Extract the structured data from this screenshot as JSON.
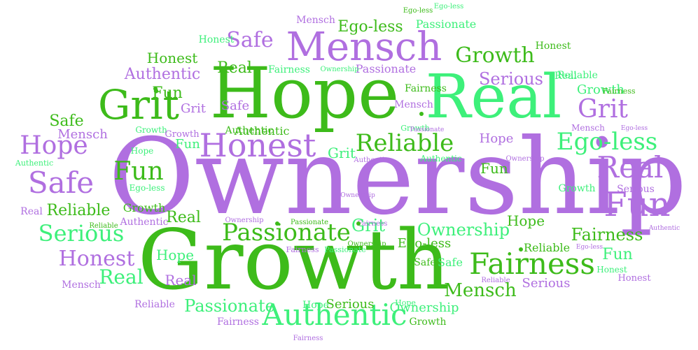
{
  "colors": {
    "green": "#3dbb1a",
    "mint": "#3df07a",
    "purple": "#b06fe0",
    "background": "#ffffff"
  },
  "words": [
    {
      "text": "Ownership",
      "color": "purple"
    },
    {
      "text": "Growth",
      "color": "green"
    },
    {
      "text": "Hope",
      "color": "green"
    },
    {
      "text": "Real",
      "color": "mint"
    },
    {
      "text": "Mensch",
      "color": "purple"
    },
    {
      "text": "Grit",
      "color": "green"
    },
    {
      "text": "Honest",
      "color": "purple"
    },
    {
      "text": "Fairness",
      "color": "green"
    },
    {
      "text": "Authentic",
      "color": "mint"
    },
    {
      "text": "Passionate",
      "color": "green"
    },
    {
      "text": "Reliable",
      "color": "green"
    },
    {
      "text": "Ego-less",
      "color": "mint"
    },
    {
      "text": "Fun",
      "color": "purple"
    },
    {
      "text": "Real",
      "color": "purple"
    },
    {
      "text": "Safe",
      "color": "purple"
    },
    {
      "text": "Hope",
      "color": "purple"
    },
    {
      "text": "Fun",
      "color": "green"
    },
    {
      "text": "Serious",
      "color": "mint"
    },
    {
      "text": "Honest",
      "color": "purple"
    },
    {
      "text": "Growth",
      "color": "green"
    },
    {
      "text": "Grit",
      "color": "purple"
    },
    {
      "text": "Safe",
      "color": "purple"
    },
    {
      "text": "Ownership",
      "color": "mint"
    },
    {
      "text": "Mensch",
      "color": "green"
    },
    {
      "text": "Serious",
      "color": "purple"
    },
    {
      "text": "Ego-less",
      "color": "green"
    },
    {
      "text": "Fairness",
      "color": "green"
    },
    {
      "text": "Passionate",
      "color": "mint"
    },
    {
      "text": "Grit",
      "color": "mint"
    },
    {
      "text": "Honest",
      "color": "green"
    },
    {
      "text": "Authentic",
      "color": "purple"
    },
    {
      "text": "Fun",
      "color": "green"
    },
    {
      "text": "Real",
      "color": "mint"
    },
    {
      "text": "Fun",
      "color": "mint"
    },
    {
      "text": "Growth",
      "color": "mint"
    },
    {
      "text": "Safe",
      "color": "green"
    },
    {
      "text": "Honest",
      "color": "green"
    },
    {
      "text": "Real",
      "color": "mint"
    },
    {
      "text": "Reliable",
      "color": "green"
    },
    {
      "text": "Real",
      "color": "green"
    },
    {
      "text": "Real",
      "color": "purple"
    },
    {
      "text": "Hope",
      "color": "mint"
    },
    {
      "text": "Real",
      "color": "green"
    },
    {
      "text": "Fun",
      "color": "green"
    },
    {
      "text": "Grit",
      "color": "mint"
    },
    {
      "text": "Safe",
      "color": "purple"
    },
    {
      "text": "Hope",
      "color": "purple"
    },
    {
      "text": "Fun",
      "color": "mint"
    },
    {
      "text": "Grit",
      "color": "purple"
    },
    {
      "text": "Mensch",
      "color": "purple"
    },
    {
      "text": "Serious",
      "color": "purple"
    },
    {
      "text": "Ownership",
      "color": "mint"
    },
    {
      "text": "Ego-less",
      "color": "green"
    },
    {
      "text": "Hope",
      "color": "mint"
    },
    {
      "text": "Authentic",
      "color": "green"
    },
    {
      "text": "Mensch",
      "color": "purple"
    },
    {
      "text": "Growth",
      "color": "green"
    },
    {
      "text": "Reliable",
      "color": "green"
    },
    {
      "text": "Hope",
      "color": "green"
    },
    {
      "text": "Safe",
      "color": "mint"
    },
    {
      "text": "Real",
      "color": "purple"
    },
    {
      "text": "Passionate",
      "color": "purple"
    },
    {
      "text": "Fairness",
      "color": "mint"
    },
    {
      "text": "Ownership",
      "color": "mint"
    },
    {
      "text": "Mensch",
      "color": "purple"
    },
    {
      "text": "Fairness",
      "color": "purple"
    },
    {
      "text": "Ego-less",
      "color": "green"
    },
    {
      "text": "Passionate",
      "color": "mint"
    },
    {
      "text": "Serious",
      "color": "green"
    },
    {
      "text": "Growth",
      "color": "green"
    },
    {
      "text": "Honest",
      "color": "mint"
    },
    {
      "text": "Authentic",
      "color": "purple"
    },
    {
      "text": "Safe",
      "color": "green"
    },
    {
      "text": "Reliable",
      "color": "mint"
    },
    {
      "text": "Growth",
      "color": "mint"
    },
    {
      "text": "Serious",
      "color": "purple"
    },
    {
      "text": "Authentic",
      "color": "green"
    },
    {
      "text": "Growth",
      "color": "mint"
    },
    {
      "text": "Hope",
      "color": "mint"
    },
    {
      "text": "Ego-less",
      "color": "mint"
    },
    {
      "text": "Honest",
      "color": "purple"
    },
    {
      "text": "Fairness",
      "color": "purple"
    },
    {
      "text": "Passionate",
      "color": "mint"
    },
    {
      "text": "Hope",
      "color": "mint"
    },
    {
      "text": "Reliable",
      "color": "purple"
    },
    {
      "text": "Mensch",
      "color": "purple"
    },
    {
      "text": "Ownership",
      "color": "purple"
    },
    {
      "text": "Fairness",
      "color": "green"
    },
    {
      "text": "Authentic",
      "color": "mint"
    },
    {
      "text": "Honest",
      "color": "mint"
    },
    {
      "text": "Mensch",
      "color": "purple"
    },
    {
      "text": "Authentic",
      "color": "mint"
    },
    {
      "text": "Growth",
      "color": "mint"
    },
    {
      "text": "Authentic",
      "color": "purple"
    },
    {
      "text": "Ego-less",
      "color": "purple"
    },
    {
      "text": "Ownership",
      "color": "purple"
    },
    {
      "text": "Reliable",
      "color": "green"
    },
    {
      "text": "Fairness",
      "color": "purple"
    },
    {
      "text": "Ego-less",
      "color": "mint"
    },
    {
      "text": "Ownership",
      "color": "purple"
    },
    {
      "text": "Ownership",
      "color": "green"
    },
    {
      "text": "Passionate",
      "color": "purple"
    },
    {
      "text": "Passionate",
      "color": "green"
    },
    {
      "text": "Reliable",
      "color": "purple"
    },
    {
      "text": "Fairness",
      "color": "purple"
    },
    {
      "text": "Authentic",
      "color": "purple"
    },
    {
      "text": "Fairness",
      "color": "green"
    },
    {
      "text": "Ego-less",
      "color": "purple"
    },
    {
      "text": "Growth",
      "color": "purple"
    }
  ]
}
